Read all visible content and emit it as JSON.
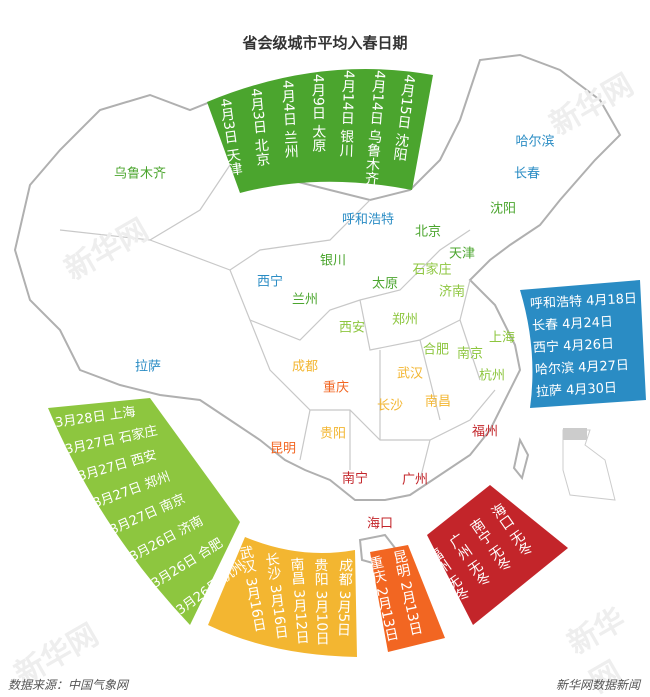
{
  "title": "省会级城市平均入春日期",
  "footer": {
    "source": "数据来源：中国气象网",
    "brand": "新华网数据新闻"
  },
  "watermark": "新华网",
  "colors": {
    "april_early": "#4ba52e",
    "march_late": "#8dc63f",
    "april_late": "#2a8cc4",
    "march_mid": "#f3b631",
    "february": "#f26622",
    "no_winter": "#c3252a",
    "map_stroke": "#b0b0b0"
  },
  "cities": [
    {
      "name": "乌鲁木齐",
      "color": "#4ba52e"
    },
    {
      "name": "哈尔滨",
      "color": "#2a8cc4"
    },
    {
      "name": "长春",
      "color": "#2a8cc4"
    },
    {
      "name": "沈阳",
      "color": "#4ba52e"
    },
    {
      "name": "呼和浩特",
      "color": "#2a8cc4"
    },
    {
      "name": "北京",
      "color": "#4ba52e"
    },
    {
      "name": "天津",
      "color": "#4ba52e"
    },
    {
      "name": "石家庄",
      "color": "#8dc63f"
    },
    {
      "name": "银川",
      "color": "#4ba52e"
    },
    {
      "name": "西宁",
      "color": "#2a8cc4"
    },
    {
      "name": "兰州",
      "color": "#4ba52e"
    },
    {
      "name": "太原",
      "color": "#4ba52e"
    },
    {
      "name": "济南",
      "color": "#8dc63f"
    },
    {
      "name": "西安",
      "color": "#8dc63f"
    },
    {
      "name": "郑州",
      "color": "#8dc63f"
    },
    {
      "name": "南京",
      "color": "#8dc63f"
    },
    {
      "name": "上海",
      "color": "#8dc63f"
    },
    {
      "name": "合肥",
      "color": "#8dc63f"
    },
    {
      "name": "杭州",
      "color": "#8dc63f"
    },
    {
      "name": "成都",
      "color": "#f3b631"
    },
    {
      "name": "武汉",
      "color": "#f3b631"
    },
    {
      "name": "重庆",
      "color": "#f26622"
    },
    {
      "name": "长沙",
      "color": "#f3b631"
    },
    {
      "name": "南昌",
      "color": "#f3b631"
    },
    {
      "name": "拉萨",
      "color": "#2a8cc4"
    },
    {
      "name": "贵阳",
      "color": "#f3b631"
    },
    {
      "name": "福州",
      "color": "#c3252a"
    },
    {
      "name": "昆明",
      "color": "#f26622"
    },
    {
      "name": "南宁",
      "color": "#c3252a"
    },
    {
      "name": "广州",
      "color": "#c3252a"
    },
    {
      "name": "海口",
      "color": "#c3252a"
    }
  ],
  "groups": {
    "april_early": [
      "4月3日 天津",
      "4月3日 北京",
      "4月4日 兰州",
      "4月9日 太原",
      "4月14日 银川",
      "4月14日 乌鲁木齐",
      "4月15日 沈阳"
    ],
    "april_late": [
      "呼和浩特 4月18日",
      "长春 4月24日",
      "西宁 4月26日",
      "哈尔滨 4月27日",
      "拉萨 4月30日"
    ],
    "march_late": [
      "3月28日 上海",
      "3月27日 石家庄",
      "3月27日 西安",
      "3月27日 郑州",
      "3月27日 南京",
      "3月26日 济南",
      "3月26日 合肥",
      "3月26日 杭州"
    ],
    "march_mid": [
      "武汉 3月16日",
      "长沙 3月16日",
      "南昌 3月12日",
      "贵阳 3月10日",
      "成都 3月5日"
    ],
    "february": [
      "重庆 2月13日",
      "昆明 2月13日"
    ],
    "no_winter": [
      "福州 无冬",
      "广州 无冬",
      "南宁 无冬",
      "海口 无冬"
    ]
  }
}
